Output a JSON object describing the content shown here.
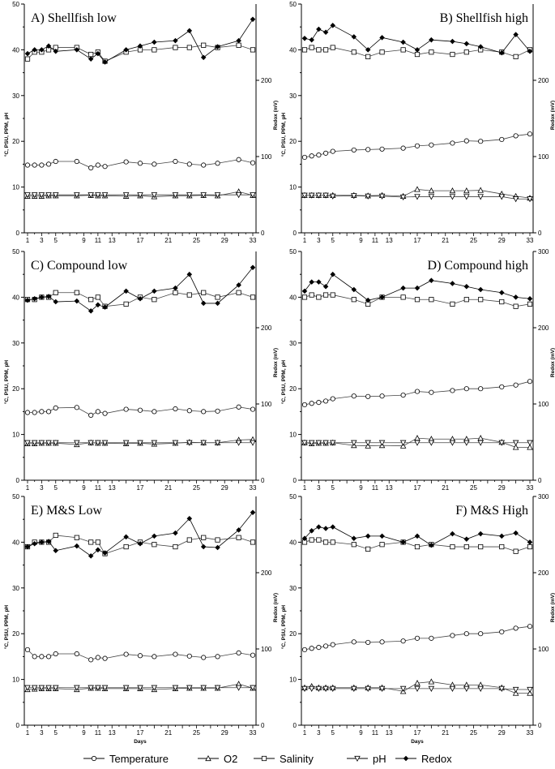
{
  "chart_data": [
    {
      "id": "A",
      "title": "A) Shellfish low",
      "type": "line",
      "position": "top-left",
      "ylabel_left": "°C, PSU, PPM, pH",
      "ylabel_right": "Redox (mV)",
      "xlabel": "",
      "ylim_left": [
        0,
        50
      ],
      "ylim_right": [
        0,
        300
      ],
      "yticks_left": [
        "0",
        "10",
        "20",
        "30",
        "40",
        "50"
      ],
      "yticks_right": [
        "0",
        "100",
        "200"
      ],
      "xticks": [
        "1",
        "3",
        "5",
        "9",
        "11",
        "13",
        "17",
        "21",
        "25",
        "29",
        "33"
      ],
      "x": [
        1,
        2,
        3,
        4,
        5,
        8,
        10,
        11,
        12,
        15,
        17,
        19,
        22,
        24,
        26,
        28,
        31,
        33
      ],
      "series": [
        {
          "name": "Temperature",
          "axis": "left",
          "marker": "circle",
          "values": [
            14.8,
            14.8,
            14.8,
            15.0,
            15.6,
            15.6,
            14.2,
            14.8,
            14.5,
            15.5,
            15.2,
            15.0,
            15.6,
            15.0,
            14.8,
            15.2,
            16.0,
            15.3
          ]
        },
        {
          "name": "O2",
          "axis": "left",
          "marker": "triangle-up",
          "values": [
            8.0,
            8.0,
            8.0,
            8.1,
            8.1,
            8.1,
            8.2,
            8.1,
            8.1,
            8.0,
            8.1,
            7.9,
            8.1,
            8.1,
            8.2,
            8.1,
            9.0,
            8.2
          ]
        },
        {
          "name": "Salinity",
          "axis": "left",
          "marker": "square",
          "values": [
            38,
            39.5,
            39.5,
            40,
            40.5,
            40.5,
            39,
            39.5,
            37.5,
            39.5,
            40,
            40,
            40.5,
            40.5,
            41,
            40.5,
            41,
            40
          ]
        },
        {
          "name": "pH",
          "axis": "left",
          "marker": "triangle-down",
          "values": [
            8.3,
            8.3,
            8.3,
            8.3,
            8.3,
            8.3,
            8.3,
            8.3,
            8.3,
            8.3,
            8.3,
            8.3,
            8.3,
            8.3,
            8.3,
            8.3,
            8.3,
            8.3
          ]
        },
        {
          "name": "Redox",
          "axis": "right",
          "marker": "diamond",
          "values": [
            235,
            240,
            240,
            245,
            238,
            240,
            228,
            235,
            224,
            240,
            245,
            250,
            252,
            265,
            230,
            244,
            252,
            280
          ]
        }
      ]
    },
    {
      "id": "B",
      "title": "B) Shellfish high",
      "type": "line",
      "position": "top-right",
      "ylabel_left": "°C, PSU, PPM, pH",
      "ylabel_right": "Redox (mV)",
      "xlabel": "",
      "ylim_left": [
        0,
        50
      ],
      "ylim_right": [
        0,
        300
      ],
      "yticks_left": [
        "0",
        "10",
        "20",
        "30",
        "40",
        "50"
      ],
      "yticks_right": [
        "0",
        "100",
        "200"
      ],
      "xticks": [
        "1",
        "3",
        "5",
        "9",
        "11",
        "13",
        "17",
        "21",
        "25",
        "29",
        "33"
      ],
      "x": [
        1,
        2,
        3,
        4,
        5,
        8,
        10,
        12,
        15,
        17,
        19,
        22,
        24,
        26,
        29,
        31,
        33
      ],
      "series": [
        {
          "name": "Temperature",
          "axis": "left",
          "marker": "circle",
          "values": [
            16.5,
            16.8,
            17.0,
            17.4,
            17.8,
            18.1,
            18.2,
            18.3,
            18.5,
            19.0,
            19.2,
            19.6,
            20.1,
            20.0,
            20.4,
            21.2,
            21.6
          ]
        },
        {
          "name": "O2",
          "axis": "left",
          "marker": "triangle-up",
          "values": [
            8.2,
            8.2,
            8.2,
            8.2,
            8.2,
            8.2,
            8.1,
            8.2,
            8.0,
            9.5,
            9.2,
            9.2,
            9.2,
            9.3,
            8.5,
            8.0,
            7.6
          ]
        },
        {
          "name": "Salinity",
          "axis": "left",
          "marker": "square",
          "values": [
            40,
            40.5,
            40,
            40,
            40.5,
            39.5,
            38.5,
            39.5,
            40,
            39,
            39.5,
            39,
            39.5,
            40,
            39.5,
            38.5,
            40
          ]
        },
        {
          "name": "pH",
          "axis": "left",
          "marker": "triangle-down",
          "values": [
            8.2,
            8.2,
            8.2,
            8.2,
            8.0,
            8.1,
            8.0,
            8.0,
            7.8,
            7.9,
            7.9,
            7.9,
            7.9,
            7.9,
            7.9,
            7.4,
            7.4
          ]
        },
        {
          "name": "Redox",
          "axis": "right",
          "marker": "diamond",
          "values": [
            255,
            253,
            267,
            263,
            272,
            257,
            240,
            256,
            250,
            240,
            253,
            251,
            248,
            244,
            236,
            260,
            238
          ]
        }
      ]
    },
    {
      "id": "C",
      "title": "C) Compound low",
      "type": "line",
      "position": "middle-left",
      "ylabel_left": "°C, PSU, PPM, pH",
      "ylabel_right": "Redox (mV)",
      "xlabel": "",
      "ylim_left": [
        0,
        50
      ],
      "ylim_right": [
        0,
        300
      ],
      "yticks_left": [
        "0",
        "10",
        "20",
        "30",
        "40",
        "50"
      ],
      "yticks_right": [
        "0",
        "100",
        "200"
      ],
      "xticks": [
        "1",
        "3",
        "5",
        "9",
        "11",
        "13",
        "17",
        "21",
        "25",
        "29",
        "33"
      ],
      "x": [
        1,
        2,
        3,
        4,
        5,
        8,
        10,
        11,
        12,
        15,
        17,
        19,
        22,
        24,
        26,
        28,
        31,
        33
      ],
      "series": [
        {
          "name": "Temperature",
          "axis": "left",
          "marker": "circle",
          "values": [
            14.8,
            14.8,
            15.0,
            15.0,
            15.8,
            15.9,
            14.2,
            15.0,
            14.6,
            15.5,
            15.3,
            15.0,
            15.6,
            15.2,
            15.0,
            15.1,
            16.0,
            15.5
          ]
        },
        {
          "name": "O2",
          "axis": "left",
          "marker": "triangle-up",
          "values": [
            8.0,
            8.0,
            8.1,
            8.1,
            8.1,
            7.8,
            8.2,
            8.1,
            8.1,
            8.0,
            8.1,
            7.9,
            8.1,
            8.3,
            8.2,
            8.2,
            8.8,
            8.9
          ]
        },
        {
          "name": "Salinity",
          "axis": "left",
          "marker": "square",
          "values": [
            39.5,
            39.5,
            40,
            40,
            41,
            41,
            39.5,
            40,
            38,
            38.5,
            40,
            39.5,
            41,
            40.5,
            41,
            40,
            41,
            40
          ]
        },
        {
          "name": "pH",
          "axis": "left",
          "marker": "triangle-down",
          "values": [
            8.2,
            8.2,
            8.2,
            8.2,
            8.2,
            8.2,
            8.2,
            8.2,
            8.2,
            8.2,
            8.2,
            8.2,
            8.2,
            8.2,
            8.2,
            8.2,
            8.2,
            8.2
          ]
        },
        {
          "name": "Redox",
          "axis": "right",
          "marker": "diamond",
          "values": [
            236,
            238,
            240,
            241,
            234,
            235,
            222,
            230,
            227,
            248,
            238,
            248,
            252,
            270,
            232,
            232,
            256,
            279
          ]
        }
      ]
    },
    {
      "id": "D",
      "title": "D) Compound high",
      "type": "line",
      "position": "middle-right",
      "ylabel_left": "°C, PSU, PPM, pH",
      "ylabel_right": "Redox (mV)",
      "xlabel": "",
      "ylim_left": [
        0,
        50
      ],
      "ylim_right": [
        0,
        300
      ],
      "yticks_left": [
        "0",
        "10",
        "20",
        "30",
        "40",
        "50"
      ],
      "yticks_right": [
        "0",
        "100",
        "200",
        "300"
      ],
      "xticks": [
        "1",
        "3",
        "5",
        "9",
        "11",
        "13",
        "17",
        "21",
        "25",
        "29",
        "33"
      ],
      "x": [
        1,
        2,
        3,
        4,
        5,
        8,
        10,
        12,
        15,
        17,
        19,
        22,
        24,
        26,
        29,
        31,
        33
      ],
      "series": [
        {
          "name": "Temperature",
          "axis": "left",
          "marker": "circle",
          "values": [
            16.5,
            16.8,
            17.0,
            17.3,
            17.8,
            18.4,
            18.3,
            18.4,
            18.6,
            19.4,
            19.2,
            19.6,
            20.0,
            20.0,
            20.4,
            20.8,
            21.6
          ]
        },
        {
          "name": "O2",
          "axis": "left",
          "marker": "triangle-up",
          "values": [
            8.2,
            8.0,
            8.1,
            8.1,
            8.2,
            7.6,
            7.5,
            7.6,
            7.5,
            9.2,
            9.0,
            9.0,
            9.0,
            9.2,
            8.3,
            7.2,
            7.2
          ]
        },
        {
          "name": "Salinity",
          "axis": "left",
          "marker": "square",
          "values": [
            40,
            40.5,
            40,
            40.5,
            40.5,
            39.5,
            38.5,
            40,
            40,
            39.5,
            39.5,
            38.5,
            39.5,
            39.5,
            39,
            38,
            38.5
          ]
        },
        {
          "name": "pH",
          "axis": "left",
          "marker": "triangle-down",
          "values": [
            8.2,
            8.2,
            8.2,
            8.2,
            8.2,
            8.2,
            8.2,
            8.2,
            8.2,
            8.2,
            8.2,
            8.2,
            8.2,
            8.2,
            8.2,
            8.2,
            8.2
          ]
        },
        {
          "name": "Redox",
          "axis": "right",
          "marker": "diamond",
          "values": [
            248,
            260,
            260,
            254,
            270,
            250,
            236,
            240,
            252,
            252,
            262,
            258,
            254,
            250,
            246,
            240,
            238
          ]
        }
      ]
    },
    {
      "id": "E",
      "title": "E) M&S Low",
      "type": "line",
      "position": "bottom-left",
      "ylabel_left": "°C, PSU, PPM, pH",
      "ylabel_right": "Redox (mV)",
      "xlabel": "Days",
      "ylim_left": [
        0,
        50
      ],
      "ylim_right": [
        0,
        300
      ],
      "yticks_left": [
        "0",
        "10",
        "20",
        "30",
        "40",
        "50"
      ],
      "yticks_right": [
        "0",
        "100",
        "200"
      ],
      "xticks": [
        "1",
        "3",
        "5",
        "9",
        "11",
        "13",
        "17",
        "21",
        "25",
        "29",
        "33"
      ],
      "x": [
        1,
        2,
        3,
        4,
        5,
        8,
        10,
        11,
        12,
        15,
        17,
        19,
        22,
        24,
        26,
        28,
        31,
        33
      ],
      "series": [
        {
          "name": "Temperature",
          "axis": "left",
          "marker": "circle",
          "values": [
            16.5,
            15.0,
            15.0,
            15.0,
            15.6,
            15.6,
            14.3,
            14.8,
            14.6,
            15.5,
            15.2,
            15.0,
            15.5,
            15.1,
            14.8,
            15.0,
            15.8,
            15.3
          ]
        },
        {
          "name": "O2",
          "axis": "left",
          "marker": "triangle-up",
          "values": [
            7.8,
            7.9,
            8.0,
            8.0,
            8.0,
            7.8,
            8.1,
            8.1,
            8.0,
            8.0,
            8.0,
            7.8,
            8.0,
            8.1,
            8.1,
            8.1,
            9.0,
            8.1
          ]
        },
        {
          "name": "Salinity",
          "axis": "left",
          "marker": "square",
          "values": [
            39,
            40,
            40,
            40,
            41.5,
            41,
            40,
            40,
            37.5,
            39,
            40,
            39.5,
            39,
            40.5,
            41,
            40.5,
            41,
            40
          ]
        },
        {
          "name": "pH",
          "axis": "left",
          "marker": "triangle-down",
          "values": [
            8.2,
            8.2,
            8.2,
            8.2,
            8.2,
            8.2,
            8.2,
            8.2,
            8.2,
            8.2,
            8.2,
            8.2,
            8.2,
            8.2,
            8.2,
            8.2,
            8.2,
            8.2
          ]
        },
        {
          "name": "Redox",
          "axis": "right",
          "marker": "diamond",
          "values": [
            234,
            238,
            240,
            241,
            229,
            235,
            222,
            230,
            226,
            247,
            238,
            248,
            252,
            271,
            234,
            233,
            256,
            279
          ]
        }
      ]
    },
    {
      "id": "F",
      "title": "F) M&S High",
      "type": "line",
      "position": "bottom-right",
      "ylabel_left": "°C, PSU, PPM, pH",
      "ylabel_right": "Redox (mV)",
      "xlabel": "Days",
      "ylim_left": [
        0,
        50
      ],
      "ylim_right": [
        0,
        300
      ],
      "yticks_left": [
        "0",
        "10",
        "20",
        "30",
        "40",
        "50"
      ],
      "yticks_right": [
        "0",
        "100",
        "200",
        "300"
      ],
      "xticks": [
        "1",
        "3",
        "5",
        "9",
        "11",
        "13",
        "17",
        "21",
        "25",
        "29",
        "33"
      ],
      "x": [
        1,
        2,
        3,
        4,
        5,
        8,
        10,
        12,
        15,
        17,
        19,
        22,
        24,
        26,
        29,
        31,
        33
      ],
      "series": [
        {
          "name": "Temperature",
          "axis": "left",
          "marker": "circle",
          "values": [
            16.5,
            16.8,
            17.0,
            17.3,
            17.6,
            18.2,
            18.1,
            18.2,
            18.4,
            19.0,
            19.0,
            19.6,
            20.0,
            20.0,
            20.4,
            21.2,
            21.6
          ]
        },
        {
          "name": "O2",
          "axis": "left",
          "marker": "triangle-up",
          "values": [
            8.2,
            8.5,
            8.2,
            8.2,
            8.2,
            8.2,
            8.2,
            8.2,
            7.4,
            9.2,
            9.5,
            8.8,
            8.8,
            8.8,
            8.2,
            7.0,
            7.0
          ]
        },
        {
          "name": "Salinity",
          "axis": "left",
          "marker": "square",
          "values": [
            40,
            40.5,
            40.5,
            40,
            40,
            39.5,
            38.5,
            39.5,
            40,
            39,
            39.5,
            39,
            39,
            39,
            39,
            38,
            39
          ]
        },
        {
          "name": "pH",
          "axis": "left",
          "marker": "triangle-down",
          "values": [
            8.0,
            8.0,
            8.0,
            8.0,
            8.0,
            8.0,
            8.0,
            8.0,
            8.0,
            8.0,
            8.0,
            8.0,
            8.0,
            8.0,
            8.0,
            7.8,
            7.8
          ]
        },
        {
          "name": "Redox",
          "axis": "right",
          "marker": "diamond",
          "values": [
            245,
            255,
            260,
            258,
            260,
            245,
            248,
            248,
            240,
            248,
            236,
            251,
            244,
            251,
            248,
            252,
            240
          ]
        }
      ]
    }
  ],
  "legend": {
    "items": [
      {
        "name": "Temperature",
        "marker": "circle"
      },
      {
        "name": "O2",
        "marker": "triangle-up"
      },
      {
        "name": "Salinity",
        "marker": "square"
      },
      {
        "name": "pH",
        "marker": "triangle-down"
      },
      {
        "name": "Redox",
        "marker": "diamond"
      }
    ]
  }
}
